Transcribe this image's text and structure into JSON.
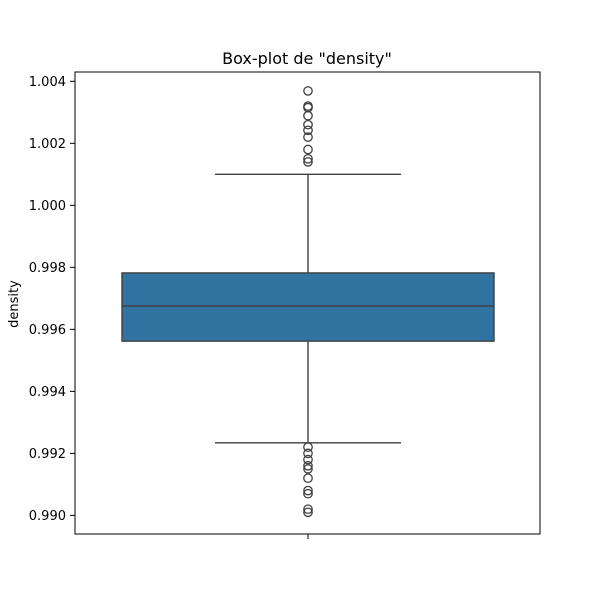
{
  "chart_data": {
    "type": "box",
    "title": "Box-plot de \"density\"",
    "xlabel": "",
    "ylabel": "density",
    "ylim": [
      0.9894,
      1.0043
    ],
    "yticks": [
      0.99,
      0.992,
      0.994,
      0.996,
      0.998,
      1.0,
      1.002,
      1.004
    ],
    "ytick_labels": [
      "0.990",
      "0.992",
      "0.994",
      "0.996",
      "0.998",
      "1.000",
      "1.002",
      "1.004"
    ],
    "box": {
      "q1": 0.99562,
      "median": 0.99675,
      "q3": 0.99782,
      "whisker_low": 0.99234,
      "whisker_high": 1.001
    },
    "outliers_high": [
      1.00369,
      1.0032,
      1.00315,
      1.00289,
      1.0026,
      1.00242,
      1.0022,
      1.0018,
      1.0015,
      1.0014
    ],
    "outliers_low": [
      0.9922,
      0.992,
      0.9918,
      0.9916,
      0.9915,
      0.9912,
      0.9908,
      0.9907,
      0.9902,
      0.9901
    ],
    "grid": false,
    "colors": {
      "box_fill": "#3274a1",
      "lines": "#3f3f3f",
      "axes": "#000000"
    }
  }
}
